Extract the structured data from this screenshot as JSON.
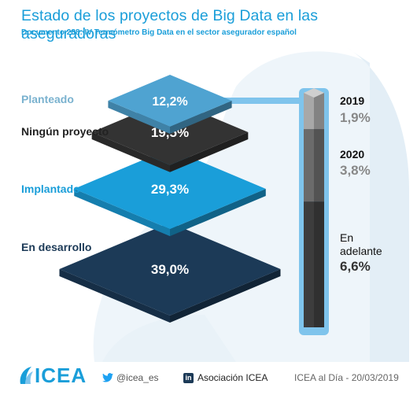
{
  "header": {
    "title": "Estado de los proyectos de Big Data en las aseguradoras",
    "subtitle": "Documento 288: IV Termómetro Big Data en el sector asegurador español"
  },
  "chart_data": {
    "type": "stacked-diamond-infographic",
    "categories": [
      {
        "name": "Planteado",
        "value": 12.2,
        "label": "12,2%",
        "color": "#4fa3d1"
      },
      {
        "name": "Ningún proyecto",
        "value": 19.5,
        "label": "19,5%",
        "color": "#333333"
      },
      {
        "name": "Implantado",
        "value": 29.3,
        "label": "29,3%",
        "color": "#1a9ed9"
      },
      {
        "name": "En desarrollo",
        "value": 39.0,
        "label": "39,0%",
        "color": "#1c3a57"
      }
    ],
    "breakdown": {
      "of_category": "Planteado",
      "segments": [
        {
          "period": "2019",
          "value": 1.9,
          "label": "1,9%",
          "color": "#a8a8a8"
        },
        {
          "period": "2020",
          "value": 3.8,
          "label": "3,8%",
          "color": "#6b6b6b"
        },
        {
          "period_lines": [
            "En",
            "adelante"
          ],
          "value": 6.6,
          "label": "6,6%",
          "color": "#3d3d3d"
        }
      ]
    }
  },
  "footer": {
    "brand": "ICEA",
    "twitter": "@icea_es",
    "linkedin_letters": "in",
    "linkedin": "Asociación ICEA",
    "date": "ICEA al Día - 20/03/2019"
  },
  "colors": {
    "accent": "#1a9ed9",
    "connector": "#7fc4ec"
  },
  "icons": [
    "twitter-icon",
    "linkedin-icon",
    "icea-logo"
  ]
}
